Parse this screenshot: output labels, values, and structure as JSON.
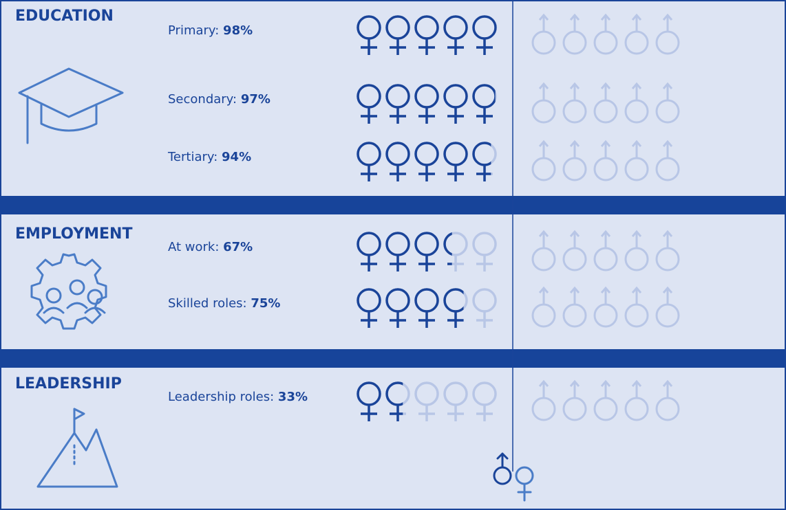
{
  "sections": [
    {
      "title": "EDUCATION",
      "items": [
        {
          "label": "Primary:",
          "value": 98,
          "value_label": "98%"
        },
        {
          "label": "Secondary:",
          "value": 97,
          "value_label": "97%"
        },
        {
          "label": "Tertiary:",
          "value": 94,
          "value_label": "94%"
        }
      ]
    },
    {
      "title": "EMPLOYMENT",
      "items": [
        {
          "label": "At work:",
          "value": 67,
          "value_label": "67%"
        },
        {
          "label": "Skilled roles:",
          "value": 75,
          "value_label": "75%"
        }
      ]
    },
    {
      "title": "LEADERSHIP",
      "items": [
        {
          "label": "Leadership roles:",
          "value": 33,
          "value_label": "33%"
        }
      ]
    }
  ]
}
